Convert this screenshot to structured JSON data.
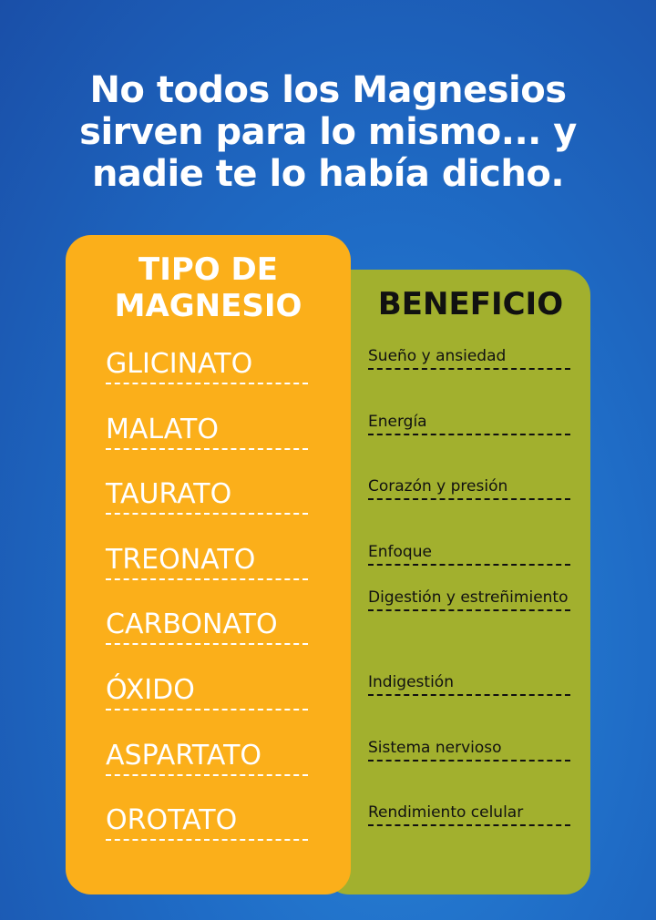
{
  "title_lines": [
    "No todos los Magnesios",
    "sirven para lo mismo... y",
    "nadie te lo había dicho."
  ],
  "colors": {
    "background": "#1f6cc6",
    "left_card": "#fbaf1a",
    "right_card": "#a2b02e"
  },
  "left": {
    "header_lines": [
      "TIPO DE",
      "MAGNESIO"
    ]
  },
  "right": {
    "header": "BENEFICIO"
  },
  "rows": [
    {
      "type": "GLICINATO",
      "benefit": "Sueño y ansiedad"
    },
    {
      "type": "MALATO",
      "benefit": "Energía"
    },
    {
      "type": "TAURATO",
      "benefit": "Corazón y presión"
    },
    {
      "type": "TREONATO",
      "benefit": "Enfoque"
    },
    {
      "type": "CARBONATO",
      "benefit": "Digestión y estreñimiento"
    },
    {
      "type": "ÓXIDO",
      "benefit": "Indigestión"
    },
    {
      "type": "ASPARTATO",
      "benefit": "Sistema nervioso"
    },
    {
      "type": "OROTATO",
      "benefit": "Rendimiento celular"
    }
  ]
}
